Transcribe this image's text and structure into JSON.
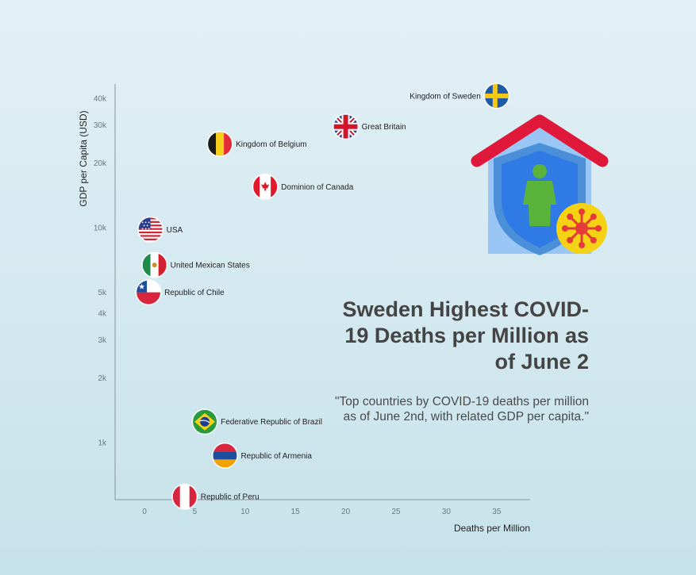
{
  "title": "Sweden Highest COVID-19 Deaths per Million as of June 2",
  "subtitle": "\"Top countries by COVID-19 deaths per million as of June 2nd, with related GDP per capita.\"",
  "chart_data": {
    "type": "scatter",
    "xlabel": "Deaths per Million",
    "ylabel": "GDP per Capita (USD)",
    "x_scale": "linear",
    "y_scale": "log",
    "xlim": [
      -3,
      38
    ],
    "ylim": [
      620,
      50000
    ],
    "x_ticks": [
      0,
      5,
      10,
      15,
      20,
      25,
      30,
      35
    ],
    "x_tick_labels": [
      "0",
      "5",
      "10",
      "15",
      "20",
      "25",
      "30",
      "35"
    ],
    "y_ticks": [
      1000,
      2000,
      3000,
      4000,
      5000,
      10000,
      20000,
      30000,
      40000
    ],
    "y_tick_labels": [
      "1k",
      "2k",
      "3k",
      "4k",
      "5k",
      "10k",
      "20k",
      "30k",
      "40k"
    ],
    "grid": false,
    "points": [
      {
        "label": "Kingdom of Sweden",
        "x": 35,
        "y": 41000,
        "flag": "sweden-flag-icon"
      },
      {
        "label": "Great Britain",
        "x": 20,
        "y": 29500,
        "flag": "uk-flag-icon"
      },
      {
        "label": "Kingdom of Belgium",
        "x": 7.5,
        "y": 24500,
        "flag": "belgium-flag-icon"
      },
      {
        "label": "Dominion of Canada",
        "x": 12,
        "y": 15500,
        "flag": "canada-flag-icon"
      },
      {
        "label": "USA",
        "x": 0.6,
        "y": 9800,
        "flag": "usa-flag-icon"
      },
      {
        "label": "United Mexican States",
        "x": 1,
        "y": 6700,
        "flag": "mexico-flag-icon"
      },
      {
        "label": "Republic of Chile",
        "x": 0.4,
        "y": 5000,
        "flag": "chile-flag-icon"
      },
      {
        "label": "Federative Republic of Brazil",
        "x": 6,
        "y": 1250,
        "flag": "brazil-flag-icon"
      },
      {
        "label": "Republic of Armenia",
        "x": 8,
        "y": 870,
        "flag": "armenia-flag-icon"
      },
      {
        "label": "Republic of Peru",
        "x": 4,
        "y": 560,
        "flag": "peru-flag-icon"
      }
    ]
  },
  "colors": {
    "house_roof": "#e0193a",
    "house_wall": "#9ac6f5",
    "shield_outer": "#4a8fd8",
    "shield_inner": "#2f7ae5",
    "person": "#59b33a",
    "virus_body": "#f5d214",
    "virus_spikes": "#e53a3a"
  }
}
